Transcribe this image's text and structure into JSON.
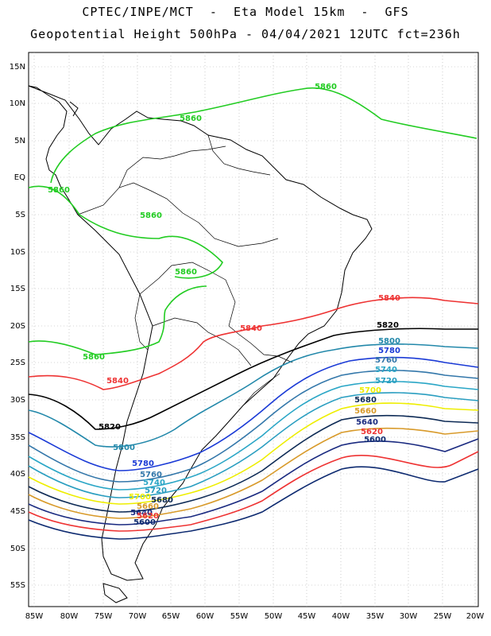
{
  "title_line1": "CPTEC/INPE/MCT  -  Eta Model 15km  -  GFS",
  "title_line2": "Geopotential Height 500hPa - 04/04/2021 12UTC fct=236h",
  "lat_labels": [
    "15N",
    "10N",
    "5N",
    "EQ",
    "5S",
    "10S",
    "15S",
    "20S",
    "25S",
    "30S",
    "35S",
    "40S",
    "45S",
    "50S",
    "55S"
  ],
  "lon_labels": [
    "85W",
    "80W",
    "75W",
    "70W",
    "65W",
    "60W",
    "55W",
    "50W",
    "45W",
    "40W",
    "35W",
    "30W",
    "25W",
    "20W"
  ],
  "contours": [
    {
      "level": "5860",
      "color": "#22cc22"
    },
    {
      "level": "5840",
      "color": "#ee3333"
    },
    {
      "level": "5820",
      "color": "#000000"
    },
    {
      "level": "5800",
      "color": "#2288aa"
    },
    {
      "level": "5780",
      "color": "#1a3ad6"
    },
    {
      "level": "5760",
      "color": "#3377aa"
    },
    {
      "level": "5740",
      "color": "#2aa6c6"
    },
    {
      "level": "5720",
      "color": "#2a9ec0"
    },
    {
      "level": "5700",
      "color": "#eeee00"
    },
    {
      "level": "5680",
      "color": "#0d2a55"
    },
    {
      "level": "5660",
      "color": "#d89a2a"
    },
    {
      "level": "5640",
      "color": "#1a2a80"
    },
    {
      "level": "5620",
      "color": "#ee3333"
    },
    {
      "level": "5600",
      "color": "#0d2a70"
    }
  ]
}
